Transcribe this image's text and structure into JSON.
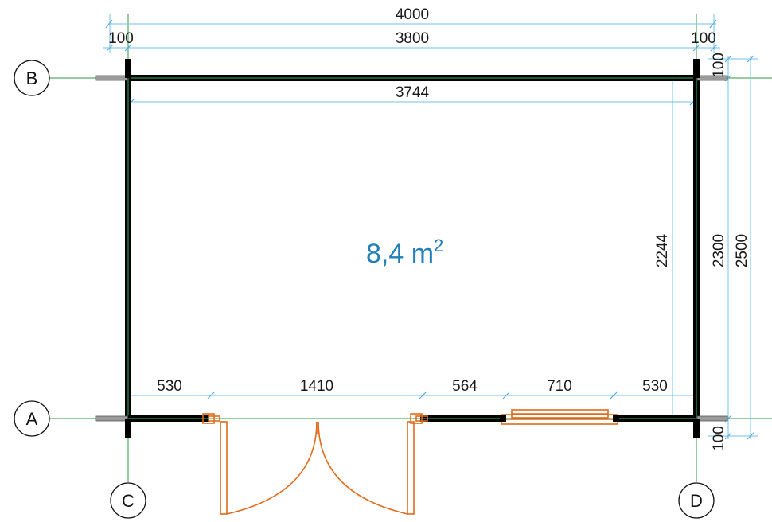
{
  "plan": {
    "area_value": "8,4 m",
    "area_exponent": "2",
    "colors": {
      "wall": "#000000",
      "wall_core": "#1a5a34",
      "grid_line": "#2e9a3e",
      "dimension_line": "#6fc2ee",
      "door_window": "#e06a1a",
      "area_text": "#1f7fb6"
    }
  },
  "axes": {
    "a": "A",
    "b": "B",
    "c": "C",
    "d": "D"
  },
  "dimensions": {
    "top_overall": "4000",
    "top_left_wall": "100",
    "top_span": "3800",
    "top_right_wall": "100",
    "inner_width": "3744",
    "bottom_segments": [
      "530",
      "1410",
      "564",
      "710",
      "530"
    ],
    "right_inner": "2244",
    "right_span": "2300",
    "right_overall": "2500",
    "right_top_wall": "100",
    "right_bottom_wall": "100"
  }
}
